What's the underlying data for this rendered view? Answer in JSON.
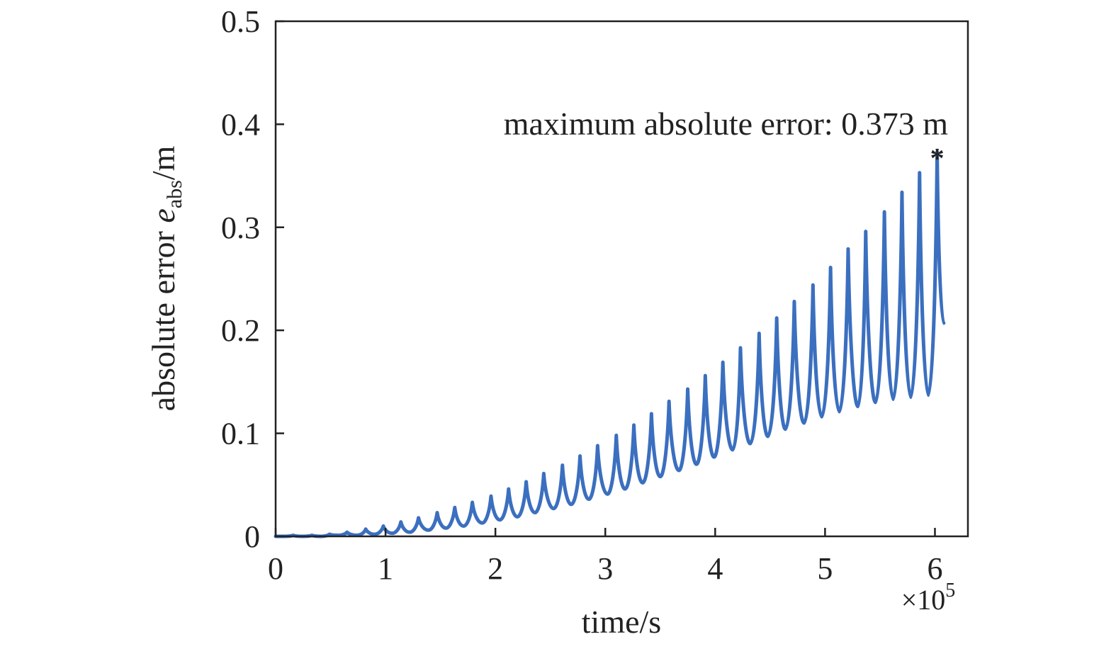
{
  "chart_data": {
    "type": "line",
    "xlabel": "time/s",
    "ylabel": {
      "prefix": "absolute error ",
      "symbol": "e",
      "subscript": "abs",
      "suffix": "/m"
    },
    "x_multiplier": {
      "prefix": "×10",
      "exponent": "5"
    },
    "xlim": [
      0,
      6.3
    ],
    "ylim": [
      0,
      0.5
    ],
    "xticks": [
      0,
      1,
      2,
      3,
      4,
      5,
      6
    ],
    "xtick_labels": [
      "0",
      "1",
      "2",
      "3",
      "4",
      "5",
      "6"
    ],
    "yticks": [
      0,
      0.1,
      0.2,
      0.3,
      0.4,
      0.5
    ],
    "ytick_labels": [
      "0",
      "0.1",
      "0.2",
      "0.3",
      "0.4",
      "0.5"
    ],
    "grid": false,
    "series": [
      {
        "color": "#3b6fbf",
        "peaks": [
          {
            "x": 0.0,
            "y": 0.0
          },
          {
            "x": 0.16,
            "y": 0.001
          },
          {
            "x": 0.33,
            "y": 0.001
          },
          {
            "x": 0.49,
            "y": 0.002
          },
          {
            "x": 0.65,
            "y": 0.004
          },
          {
            "x": 0.82,
            "y": 0.007
          },
          {
            "x": 0.98,
            "y": 0.01
          },
          {
            "x": 1.14,
            "y": 0.014
          },
          {
            "x": 1.3,
            "y": 0.018
          },
          {
            "x": 1.47,
            "y": 0.023
          },
          {
            "x": 1.63,
            "y": 0.028
          },
          {
            "x": 1.79,
            "y": 0.033
          },
          {
            "x": 1.96,
            "y": 0.039
          },
          {
            "x": 2.12,
            "y": 0.046
          },
          {
            "x": 2.28,
            "y": 0.053
          },
          {
            "x": 2.44,
            "y": 0.061
          },
          {
            "x": 2.61,
            "y": 0.069
          },
          {
            "x": 2.77,
            "y": 0.078
          },
          {
            "x": 2.93,
            "y": 0.088
          },
          {
            "x": 3.1,
            "y": 0.098
          },
          {
            "x": 3.26,
            "y": 0.108
          },
          {
            "x": 3.42,
            "y": 0.119
          },
          {
            "x": 3.58,
            "y": 0.131
          },
          {
            "x": 3.75,
            "y": 0.143
          },
          {
            "x": 3.91,
            "y": 0.156
          },
          {
            "x": 4.07,
            "y": 0.169
          },
          {
            "x": 4.23,
            "y": 0.183
          },
          {
            "x": 4.4,
            "y": 0.197
          },
          {
            "x": 4.56,
            "y": 0.212
          },
          {
            "x": 4.72,
            "y": 0.228
          },
          {
            "x": 4.89,
            "y": 0.244
          },
          {
            "x": 5.05,
            "y": 0.261
          },
          {
            "x": 5.21,
            "y": 0.279
          },
          {
            "x": 5.37,
            "y": 0.296
          },
          {
            "x": 5.54,
            "y": 0.315
          },
          {
            "x": 5.7,
            "y": 0.334
          },
          {
            "x": 5.86,
            "y": 0.353
          },
          {
            "x": 6.02,
            "y": 0.373
          }
        ],
        "troughs": [
          {
            "x": 0.08,
            "y": 0.0
          },
          {
            "x": 0.25,
            "y": 0.0
          },
          {
            "x": 0.41,
            "y": 0.0
          },
          {
            "x": 0.57,
            "y": 0.001
          },
          {
            "x": 0.74,
            "y": 0.001
          },
          {
            "x": 0.9,
            "y": 0.002
          },
          {
            "x": 1.06,
            "y": 0.003
          },
          {
            "x": 1.22,
            "y": 0.004
          },
          {
            "x": 1.39,
            "y": 0.006
          },
          {
            "x": 1.55,
            "y": 0.008
          },
          {
            "x": 1.71,
            "y": 0.01
          },
          {
            "x": 1.88,
            "y": 0.013
          },
          {
            "x": 2.04,
            "y": 0.016
          },
          {
            "x": 2.2,
            "y": 0.019
          },
          {
            "x": 2.36,
            "y": 0.023
          },
          {
            "x": 2.53,
            "y": 0.027
          },
          {
            "x": 2.69,
            "y": 0.031
          },
          {
            "x": 2.85,
            "y": 0.036
          },
          {
            "x": 3.02,
            "y": 0.041
          },
          {
            "x": 3.18,
            "y": 0.046
          },
          {
            "x": 3.34,
            "y": 0.052
          },
          {
            "x": 3.5,
            "y": 0.058
          },
          {
            "x": 3.67,
            "y": 0.064
          },
          {
            "x": 3.83,
            "y": 0.07
          },
          {
            "x": 3.99,
            "y": 0.077
          },
          {
            "x": 4.16,
            "y": 0.084
          },
          {
            "x": 4.32,
            "y": 0.09
          },
          {
            "x": 4.48,
            "y": 0.097
          },
          {
            "x": 4.64,
            "y": 0.104
          },
          {
            "x": 4.81,
            "y": 0.11
          },
          {
            "x": 4.97,
            "y": 0.116
          },
          {
            "x": 5.13,
            "y": 0.121
          },
          {
            "x": 5.3,
            "y": 0.126
          },
          {
            "x": 5.46,
            "y": 0.13
          },
          {
            "x": 5.62,
            "y": 0.133
          },
          {
            "x": 5.78,
            "y": 0.135
          },
          {
            "x": 5.94,
            "y": 0.137
          }
        ],
        "end_point": {
          "x": 6.08,
          "y": 0.207
        }
      }
    ],
    "max_marker": {
      "x": 6.02,
      "y": 0.373,
      "symbol": "*"
    },
    "annotation": "maximum absolute error: 0.373 m"
  }
}
